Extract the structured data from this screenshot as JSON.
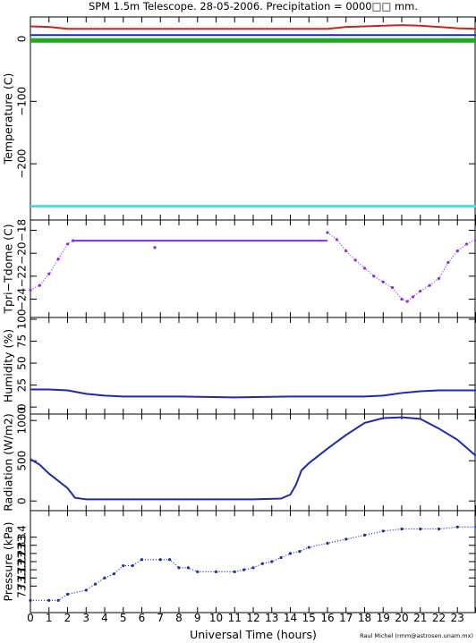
{
  "title": "SPM 1.5m Telescope. 28-05-2006. Precipitation = 0000□□ mm.",
  "xlabel": "Universal Time (hours)",
  "credit": "Raul Michel (rmm@astrosen.unam.mx)",
  "x_ticks": [
    "0",
    "1",
    "2",
    "3",
    "4",
    "5",
    "6",
    "7",
    "8",
    "9",
    "10",
    "11",
    "12",
    "13",
    "14",
    "15",
    "16",
    "17",
    "18",
    "19",
    "20",
    "21",
    "22",
    "23"
  ],
  "colors": {
    "red": "#d42020",
    "blue": "#1a2ab4",
    "green": "#1faa1f",
    "cyan": "#40e0e8",
    "purple": "#8a2be2"
  },
  "chart_data": [
    {
      "type": "line",
      "ylabel": "Temperature (C)",
      "ylim": [
        -290,
        35
      ],
      "y_ticks": [
        "0",
        "−100",
        "−200"
      ],
      "xlim": [
        0,
        24
      ],
      "series": [
        {
          "color": "red",
          "x": [
            0,
            1,
            2,
            3,
            5,
            8,
            11,
            14,
            16,
            17,
            18,
            19,
            20,
            21,
            22,
            23,
            24
          ],
          "y": [
            20,
            19,
            16,
            16,
            16,
            16,
            16,
            16,
            16,
            19,
            20,
            21,
            22,
            21,
            19,
            17,
            16
          ]
        },
        {
          "color": "blue",
          "x": [
            0,
            24
          ],
          "y": [
            6,
            6
          ]
        },
        {
          "color": "green",
          "x": [
            0,
            24
          ],
          "y": [
            -1,
            -1
          ]
        },
        {
          "color": "green",
          "x": [
            0,
            24
          ],
          "y": [
            -4,
            -4
          ]
        },
        {
          "color": "cyan",
          "x": [
            0,
            24
          ],
          "y": [
            -268,
            -268
          ]
        }
      ]
    },
    {
      "type": "scatter",
      "ylabel": "Tpri−Tdome (C)",
      "ylim": [
        -25.6,
        -17.1
      ],
      "y_ticks": [
        "−24",
        "−22",
        "−20",
        "−18"
      ],
      "xlim": [
        0,
        24
      ],
      "series": [
        {
          "color": "purple",
          "x": [
            0,
            0.5,
            1,
            1.5,
            2,
            2.3
          ],
          "y": [
            -23.2,
            -22.8,
            -21.8,
            -20.5,
            -19.2,
            -18.9
          ]
        },
        {
          "color": "purple",
          "x": [
            2.3,
            16
          ],
          "y": [
            -18.9,
            -18.9
          ]
        },
        {
          "color": "purple",
          "x": [
            6.7
          ],
          "y": [
            -19.5
          ]
        },
        {
          "color": "purple",
          "x": [
            16,
            16.5,
            17,
            17.5,
            18,
            18.5,
            19,
            19.5,
            20,
            20.3,
            20.6,
            21,
            21.5,
            22,
            22.5,
            23,
            23.5,
            24
          ],
          "y": [
            -18.2,
            -18.8,
            -19.8,
            -20.6,
            -21.3,
            -22,
            -22.5,
            -23,
            -24,
            -24.2,
            -23.8,
            -23.3,
            -22.8,
            -22.2,
            -20.8,
            -19.8,
            -19.2,
            -18.8
          ]
        }
      ]
    },
    {
      "type": "line",
      "ylabel": "Humidity (%)",
      "ylim": [
        -8,
        102
      ],
      "y_ticks": [
        "0",
        "25",
        "50",
        "75",
        "100"
      ],
      "xlim": [
        0,
        24
      ],
      "series": [
        {
          "color": "blue",
          "x": [
            0,
            1,
            2,
            3,
            4,
            5,
            8,
            11,
            14,
            17,
            18,
            19,
            20,
            21,
            22,
            23,
            24
          ],
          "y": [
            20,
            20,
            19,
            15,
            13,
            12,
            12,
            11,
            12,
            12,
            12,
            13,
            16,
            18,
            19,
            19,
            19
          ]
        }
      ]
    },
    {
      "type": "line",
      "ylabel": "Radiation (W/m2)",
      "ylim": [
        -120,
        1080
      ],
      "y_ticks": [
        "0",
        "500",
        "1000"
      ],
      "xlim": [
        0,
        24
      ],
      "series": [
        {
          "color": "blue",
          "x": [
            0,
            0.5,
            1,
            1.5,
            2,
            2.4,
            3,
            6,
            9,
            12,
            13.5,
            14,
            14.3,
            14.6,
            15,
            16,
            17,
            18,
            19,
            20,
            21,
            22,
            23,
            24
          ],
          "y": [
            520,
            450,
            340,
            250,
            160,
            40,
            20,
            20,
            20,
            20,
            30,
            80,
            200,
            380,
            470,
            650,
            820,
            970,
            1030,
            1040,
            1020,
            900,
            760,
            560
          ]
        }
      ]
    },
    {
      "type": "scatter",
      "ylabel": "Pressure (kPa)",
      "ylim": [
        73.0,
        73.5
      ],
      "y_ticks": [
        "73.1",
        "73.1",
        "73.2",
        "73.2",
        "73.3",
        "73.3",
        "73.4"
      ],
      "xlim": [
        0,
        24
      ],
      "series": [
        {
          "color": "blue",
          "x": [
            0,
            1,
            1.5,
            2,
            3,
            3.5,
            4,
            4.5,
            5,
            5.5,
            6,
            7,
            7.5,
            8,
            8.5,
            9,
            10,
            11,
            11.5,
            12,
            12.5,
            13,
            13.5,
            14,
            14.5,
            15,
            16,
            17,
            18,
            19,
            20,
            21,
            22,
            23,
            24
          ],
          "y": [
            73.06,
            73.06,
            73.06,
            73.09,
            73.11,
            73.14,
            73.17,
            73.19,
            73.23,
            73.23,
            73.26,
            73.26,
            73.26,
            73.22,
            73.22,
            73.2,
            73.2,
            73.2,
            73.21,
            73.22,
            73.24,
            73.25,
            73.27,
            73.29,
            73.3,
            73.32,
            73.34,
            73.36,
            73.38,
            73.4,
            73.41,
            73.41,
            73.41,
            73.42,
            73.42
          ]
        }
      ]
    }
  ]
}
